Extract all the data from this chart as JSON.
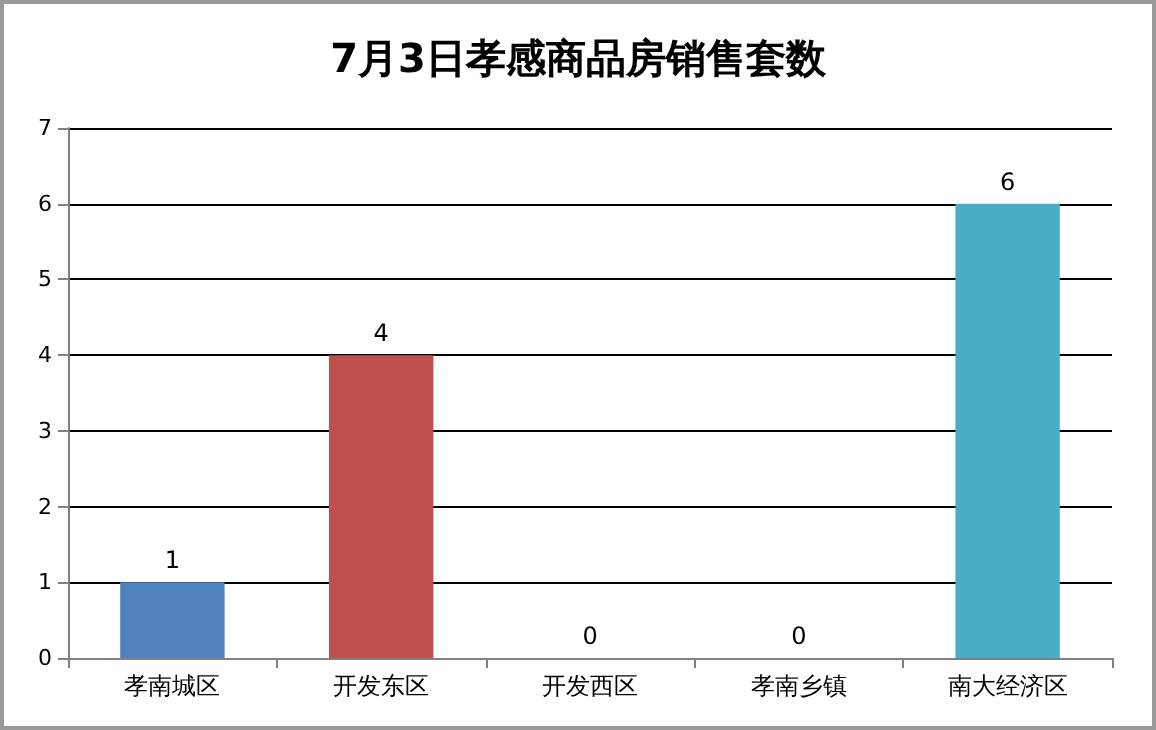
{
  "chart_data": {
    "type": "bar",
    "title": "7月3日孝感商品房销售套数",
    "categories": [
      "孝南城区",
      "开发东区",
      "开发西区",
      "孝南乡镇",
      "南大经济区"
    ],
    "values": [
      1,
      4,
      0,
      0,
      6
    ],
    "colors": [
      "#4f81bd",
      "#c0504d",
      "#9bbb59",
      "#8064a2",
      "#4bacc6"
    ],
    "ylim": [
      0,
      7
    ],
    "yticks": [
      0,
      1,
      2,
      3,
      4,
      5,
      6,
      7
    ],
    "grid": "y",
    "data_labels": true
  }
}
